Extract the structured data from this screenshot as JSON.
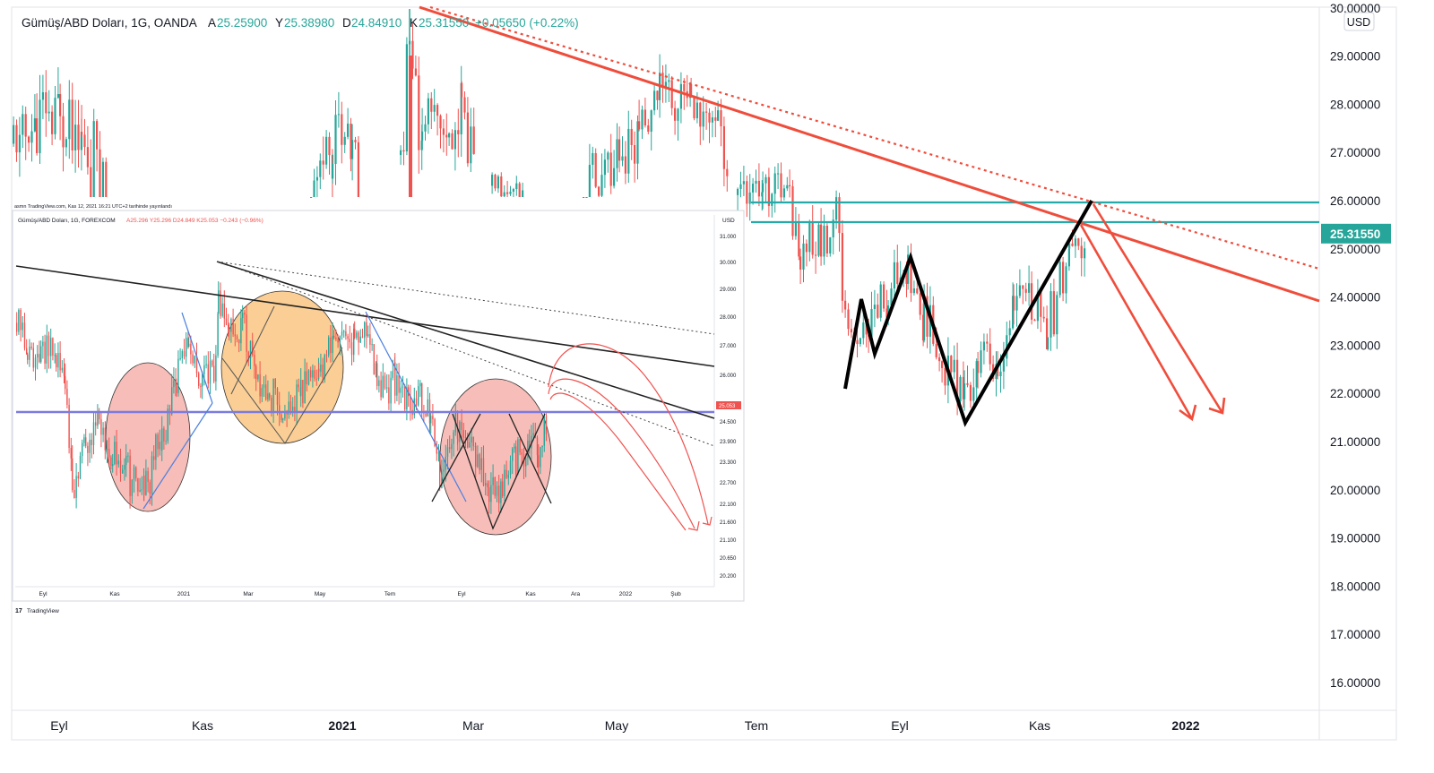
{
  "main_chart": {
    "symbol": "Gümüş/ABD Doları, 1G, OANDA",
    "ohlc": [
      {
        "k": "A",
        "v": "25.25900"
      },
      {
        "k": "Y",
        "v": "25.38980"
      },
      {
        "k": "D",
        "v": "24.84910"
      },
      {
        "k": "K",
        "v": "25.31550"
      }
    ],
    "change": "+0.05650 (+0.22%)",
    "currency": "USD",
    "price_ticks": [
      "30.00000",
      "29.00000",
      "28.00000",
      "27.00000",
      "26.00000",
      "25.00000",
      "24.00000",
      "23.00000",
      "22.00000",
      "21.00000",
      "20.00000",
      "19.00000",
      "18.00000",
      "17.00000",
      "16.00000"
    ],
    "last_price": "25.31550",
    "time_ticks": [
      "Eyl",
      "Kas",
      "2021",
      "Mar",
      "May",
      "Tem",
      "Eyl",
      "Kas",
      "2022"
    ],
    "colors": {
      "up": "#26a69a",
      "down": "#ef5350",
      "trendline": "#ef4d3c",
      "support": "#26a9a9",
      "pattern": "#000000"
    }
  },
  "inset_chart": {
    "publish_note": "asmn TradingView.com, Kas 12, 2021 16:21 UTC+2 tarihinde yayınlandı",
    "symbol": "Gümüş/ABD Doları, 1G, FOREXCOM",
    "ohlc": "A25.296  Y25.296  D24.849  K25.053  −0.243 (−0.96%)",
    "currency": "USD",
    "price_ticks": [
      "31.000",
      "30.000",
      "29.000",
      "28.000",
      "27.000",
      "26.000",
      "25.053",
      "24.500",
      "23.900",
      "23.300",
      "22.700",
      "22.100",
      "21.600",
      "21.100",
      "20.650",
      "20.200"
    ],
    "last_price": "25.053",
    "time_ticks": [
      "Eyl",
      "Kas",
      "2021",
      "Mar",
      "May",
      "Tem",
      "Eyl",
      "Kas",
      "Ara",
      "2022",
      "Şub"
    ],
    "watermark": "TradingView"
  },
  "chart_data": [
    {
      "type": "candlestick",
      "title": "Gümüş/ABD Doları, 1G, OANDA",
      "y_unit": "USD",
      "ylim": [
        15.5,
        30.2
      ],
      "x_range": [
        "2020-08",
        "2022-02"
      ],
      "grid": false,
      "ohlc_last": {
        "open": 25.259,
        "high": 25.3898,
        "low": 24.8491,
        "close": 25.3155
      },
      "horizontal_levels": [
        26.0,
        25.6
      ],
      "descending_trendlines": [
        {
          "style": "solid",
          "from": {
            "x": "2021-02",
            "y": 30.2
          },
          "to": {
            "x": "2022-02",
            "y": 24.0
          }
        },
        {
          "style": "dotted",
          "from": {
            "x": "2021-02",
            "y": 30.2
          },
          "to": {
            "x": "2022-02",
            "y": 24.6
          }
        }
      ],
      "pattern_points": [
        {
          "x": "2021-08",
          "y": 22.1
        },
        {
          "x": "2021-08",
          "y": 23.9
        },
        {
          "x": "2021-08",
          "y": 22.9
        },
        {
          "x": "2021-09",
          "y": 24.9
        },
        {
          "x": "2021-10",
          "y": 21.4
        },
        {
          "x": "2021-11",
          "y": 26.0
        }
      ],
      "projection_targets": [
        21.5,
        21.7
      ]
    },
    {
      "type": "candlestick",
      "title": "Gümüş/ABD Doları, 1G, FOREXCOM",
      "y_unit": "USD",
      "ylim": [
        20.0,
        31.5
      ],
      "x_range": [
        "2020-08",
        "2022-03"
      ],
      "grid": false,
      "ohlc_last": {
        "open": 25.296,
        "high": 25.296,
        "low": 24.849,
        "close": 25.053
      },
      "horizontal_levels": [
        25.053
      ],
      "projection_targets": [
        21.6
      ]
    }
  ]
}
